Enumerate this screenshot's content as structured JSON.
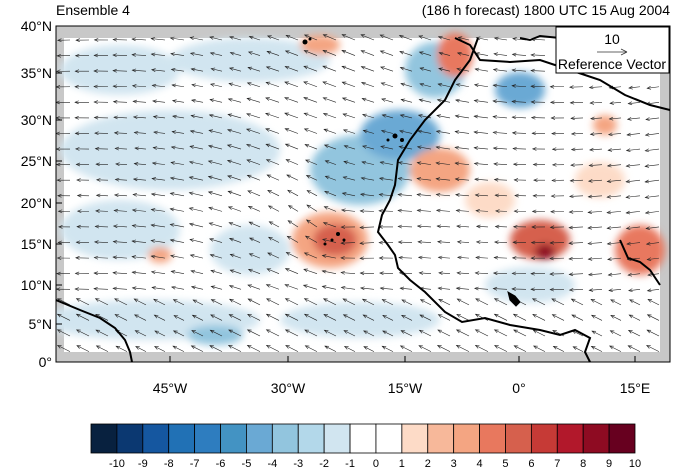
{
  "header": {
    "left": "Ensemble 4",
    "right": "(186 h forecast) 1800 UTC 15 Aug 2004"
  },
  "axes": {
    "lat_labels": [
      "40°N",
      "35°N",
      "30°N",
      "25°N",
      "20°N",
      "15°N",
      "10°N",
      "5°N",
      "0°"
    ],
    "lon_labels": [
      "45°W",
      "30°W",
      "15°W",
      "0°",
      "15°E"
    ]
  },
  "reference_vector": {
    "value": "10",
    "label": "Reference Vector"
  },
  "colorbar": {
    "labels": [
      "-10",
      "-9",
      "-8",
      "-7",
      "-6",
      "-5",
      "-4",
      "-3",
      "-2",
      "-1",
      "0",
      "1",
      "2",
      "3",
      "4",
      "5",
      "6",
      "7",
      "8",
      "9",
      "10"
    ],
    "colors": [
      "#08213f",
      "#0b3871",
      "#1557a0",
      "#2171b5",
      "#2e7dbf",
      "#4393c3",
      "#6aa9d4",
      "#92c5de",
      "#b3d8ea",
      "#d1e5f0",
      "#ffffff",
      "#ffffff",
      "#fddbc7",
      "#f7b89a",
      "#f4a582",
      "#e8785e",
      "#d6604d",
      "#c63a36",
      "#b2182b",
      "#8e0b22",
      "#67001f"
    ]
  },
  "map": {
    "land_border_color": "#000000",
    "missing_color": "#c8c8c8"
  }
}
